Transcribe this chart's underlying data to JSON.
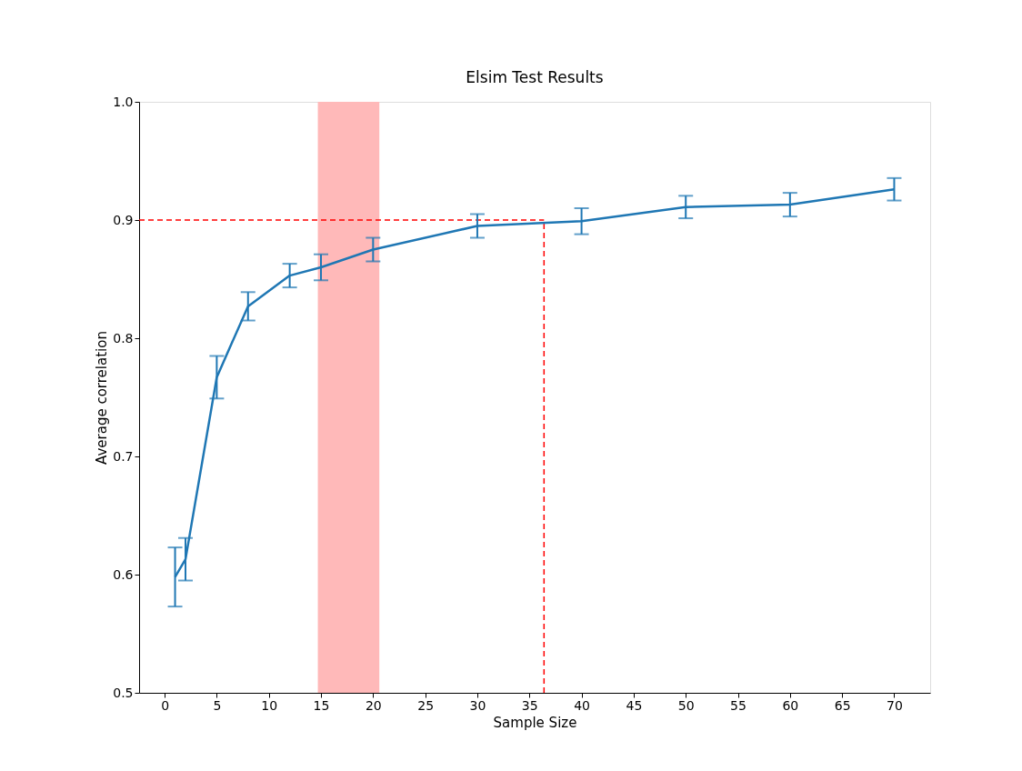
{
  "chart_data": {
    "type": "line",
    "title": "Elsim Test Results",
    "xlabel": "Sample Size",
    "ylabel": "Average correlation",
    "x": [
      1,
      2,
      5,
      8,
      12,
      15,
      20,
      30,
      40,
      50,
      60,
      70
    ],
    "series": [
      {
        "color": "#1f77b4",
        "values": [
          0.598,
          0.613,
          0.767,
          0.827,
          0.853,
          0.86,
          0.875,
          0.895,
          0.899,
          0.911,
          0.913,
          0.926
        ],
        "errors": [
          0.025,
          0.018,
          0.018,
          0.012,
          0.01,
          0.011,
          0.01,
          0.01,
          0.011,
          0.0095,
          0.01,
          0.0095
        ]
      }
    ],
    "xlim": [
      -2.45,
      73.45
    ],
    "ylim": [
      0.5,
      1.0
    ],
    "xticks": [
      0,
      5,
      10,
      15,
      20,
      25,
      30,
      35,
      40,
      45,
      50,
      55,
      60,
      65,
      70
    ],
    "yticks": [
      0.5,
      0.6,
      0.7,
      0.8,
      0.9,
      {
        "value": 1.0,
        "label": "1.0"
      }
    ],
    "ref_lines": [
      {
        "axis": "y",
        "value": 0.9,
        "color": "#ff0000",
        "line_style": "dashed"
      },
      {
        "axis": "x",
        "value": 36.4,
        "color": "#ff0000",
        "line_style": "dashed"
      }
    ],
    "bands": [
      {
        "axis": "x",
        "from": 14.7,
        "to": 20.6,
        "color": "#ffb9b9"
      }
    ],
    "grid": false,
    "marker": "none",
    "line_style": "solid"
  }
}
